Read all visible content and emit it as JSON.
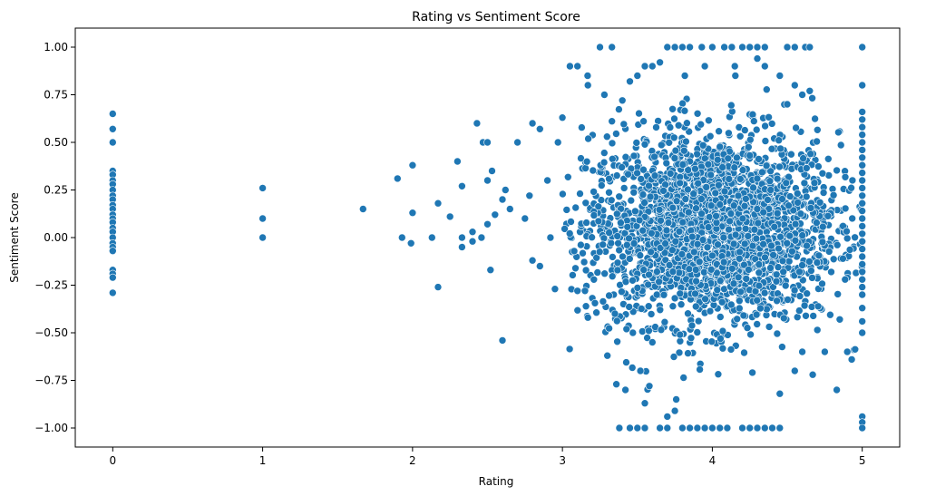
{
  "chart_data": {
    "type": "scatter",
    "title": "Rating vs Sentiment Score",
    "xlabel": "Rating",
    "ylabel": "Sentiment Score",
    "xlim": [
      -0.25,
      5.25
    ],
    "ylim": [
      -1.1,
      1.1
    ],
    "xticks": [
      0,
      1,
      2,
      3,
      4,
      5
    ],
    "xtick_labels": [
      "0",
      "1",
      "2",
      "3",
      "4",
      "5"
    ],
    "yticks": [
      -1.0,
      -0.75,
      -0.5,
      -0.25,
      0.0,
      0.25,
      0.5,
      0.75,
      1.0
    ],
    "ytick_labels": [
      "−1.00",
      "−0.75",
      "−0.50",
      "−0.25",
      "0.00",
      "0.25",
      "0.50",
      "0.75",
      "1.00"
    ],
    "grid": false,
    "marker_color": "#1f77b4",
    "marker_edge_color": "#ffffff",
    "series": [
      {
        "points": [
          [
            0,
            0.65
          ],
          [
            0,
            0.57
          ],
          [
            0,
            0.5
          ],
          [
            0,
            0.35
          ],
          [
            0,
            0.33
          ],
          [
            0,
            0.3
          ],
          [
            0,
            0.28
          ],
          [
            0,
            0.25
          ],
          [
            0,
            0.22
          ],
          [
            0,
            0.2
          ],
          [
            0,
            0.17
          ],
          [
            0,
            0.15
          ],
          [
            0,
            0.12
          ],
          [
            0,
            0.1
          ],
          [
            0,
            0.08
          ],
          [
            0,
            0.05
          ],
          [
            0,
            0.03
          ],
          [
            0,
            0.0
          ],
          [
            0,
            -0.03
          ],
          [
            0,
            -0.05
          ],
          [
            0,
            -0.07
          ],
          [
            0,
            -0.17
          ],
          [
            0,
            -0.19
          ],
          [
            0,
            -0.21
          ],
          [
            0,
            -0.29
          ],
          [
            1,
            0.26
          ],
          [
            1,
            0.1
          ],
          [
            1,
            0.0
          ],
          [
            1.67,
            0.15
          ],
          [
            1.9,
            0.31
          ],
          [
            1.93,
            0.0
          ],
          [
            2.0,
            0.38
          ],
          [
            2.0,
            0.13
          ],
          [
            1.99,
            -0.03
          ],
          [
            2.13,
            0.0
          ],
          [
            2.17,
            0.18
          ],
          [
            2.17,
            -0.26
          ],
          [
            2.25,
            0.11
          ],
          [
            2.3,
            0.4
          ],
          [
            2.33,
            0.27
          ],
          [
            2.33,
            0.0
          ],
          [
            2.33,
            -0.05
          ],
          [
            2.4,
            0.03
          ],
          [
            2.4,
            -0.02
          ],
          [
            2.43,
            0.6
          ],
          [
            2.46,
            0.0
          ],
          [
            2.47,
            0.5
          ],
          [
            2.5,
            0.5
          ],
          [
            2.5,
            0.3
          ],
          [
            2.5,
            0.07
          ],
          [
            2.52,
            -0.17
          ],
          [
            2.53,
            0.35
          ],
          [
            2.55,
            0.12
          ],
          [
            2.6,
            0.2
          ],
          [
            2.6,
            -0.54
          ],
          [
            2.62,
            0.25
          ],
          [
            2.65,
            0.15
          ],
          [
            2.7,
            0.5
          ],
          [
            2.75,
            0.1
          ],
          [
            2.78,
            0.22
          ],
          [
            2.8,
            0.6
          ],
          [
            2.8,
            -0.12
          ],
          [
            2.85,
            0.57
          ],
          [
            2.85,
            -0.15
          ],
          [
            2.9,
            0.3
          ],
          [
            2.92,
            0.0
          ],
          [
            2.95,
            -0.27
          ],
          [
            2.97,
            0.5
          ],
          [
            3.0,
            0.63
          ],
          [
            3.05,
            0.9
          ],
          [
            3.1,
            0.9
          ],
          [
            3.1,
            -0.28
          ],
          [
            3.17,
            0.8
          ],
          [
            3.17,
            -0.42
          ],
          [
            3.25,
            1.0
          ],
          [
            3.28,
            0.75
          ],
          [
            3.33,
            1.0
          ],
          [
            3.3,
            -0.62
          ],
          [
            3.35,
            -0.4
          ],
          [
            3.36,
            -0.77
          ],
          [
            3.38,
            -1.0
          ],
          [
            3.42,
            -0.8
          ],
          [
            3.45,
            -1.0
          ],
          [
            3.47,
            -0.5
          ],
          [
            3.5,
            -1.0
          ],
          [
            3.52,
            -0.7
          ],
          [
            3.55,
            -1.0
          ],
          [
            3.55,
            -0.87
          ],
          [
            3.58,
            -0.78
          ],
          [
            3.6,
            -0.55
          ],
          [
            3.65,
            -1.0
          ],
          [
            3.7,
            -1.0
          ],
          [
            3.7,
            -0.94
          ],
          [
            3.75,
            -0.91
          ],
          [
            3.8,
            -1.0
          ],
          [
            3.85,
            -1.0
          ],
          [
            3.9,
            -1.0
          ],
          [
            3.95,
            -1.0
          ],
          [
            4.0,
            -1.0
          ],
          [
            4.05,
            -1.0
          ],
          [
            4.1,
            -1.0
          ],
          [
            4.2,
            -1.0
          ],
          [
            4.25,
            -1.0
          ],
          [
            4.3,
            -1.0
          ],
          [
            4.35,
            -1.0
          ],
          [
            4.4,
            -1.0
          ],
          [
            4.45,
            -1.0
          ],
          [
            4.45,
            -0.82
          ],
          [
            4.55,
            -0.7
          ],
          [
            4.6,
            -0.6
          ],
          [
            4.67,
            -0.72
          ],
          [
            4.75,
            -0.6
          ],
          [
            4.83,
            -0.8
          ],
          [
            4.85,
            -0.43
          ],
          [
            4.9,
            -0.6
          ],
          [
            4.93,
            -0.64
          ],
          [
            3.7,
            1.0
          ],
          [
            3.75,
            1.0
          ],
          [
            3.8,
            1.0
          ],
          [
            3.85,
            1.0
          ],
          [
            3.93,
            1.0
          ],
          [
            4.0,
            1.0
          ],
          [
            4.08,
            1.0
          ],
          [
            4.13,
            1.0
          ],
          [
            4.2,
            1.0
          ],
          [
            4.25,
            1.0
          ],
          [
            4.3,
            1.0
          ],
          [
            4.35,
            1.0
          ],
          [
            4.5,
            1.0
          ],
          [
            4.55,
            1.0
          ],
          [
            4.62,
            1.0
          ],
          [
            4.65,
            1.0
          ],
          [
            4.3,
            0.94
          ],
          [
            3.65,
            0.92
          ],
          [
            3.55,
            0.9
          ],
          [
            3.6,
            0.9
          ],
          [
            3.95,
            0.9
          ],
          [
            4.15,
            0.9
          ],
          [
            4.35,
            0.9
          ],
          [
            4.45,
            0.85
          ],
          [
            3.5,
            0.85
          ],
          [
            3.45,
            0.82
          ],
          [
            4.55,
            0.8
          ],
          [
            4.6,
            0.75
          ],
          [
            4.65,
            0.77
          ],
          [
            4.5,
            0.7
          ],
          [
            3.4,
            0.72
          ],
          [
            5,
            1.0
          ],
          [
            5,
            0.8
          ],
          [
            5,
            0.66
          ],
          [
            5,
            0.62
          ],
          [
            5,
            0.58
          ],
          [
            5,
            0.54
          ],
          [
            5,
            0.5
          ],
          [
            5,
            0.46
          ],
          [
            5,
            0.42
          ],
          [
            5,
            0.38
          ],
          [
            5,
            0.34
          ],
          [
            5,
            0.3
          ],
          [
            5,
            0.26
          ],
          [
            5,
            0.22
          ],
          [
            5,
            0.18
          ],
          [
            5,
            0.14
          ],
          [
            5,
            0.1
          ],
          [
            5,
            0.06
          ],
          [
            5,
            0.02
          ],
          [
            5,
            -0.02
          ],
          [
            5,
            -0.06
          ],
          [
            5,
            -0.1
          ],
          [
            5,
            -0.14
          ],
          [
            5,
            -0.18
          ],
          [
            5,
            -0.22
          ],
          [
            5,
            -0.26
          ],
          [
            5,
            -0.3
          ],
          [
            5,
            -0.37
          ],
          [
            5,
            -0.44
          ],
          [
            5,
            -0.5
          ],
          [
            5,
            -0.94
          ],
          [
            5,
            -0.97
          ],
          [
            5,
            -1.0
          ]
        ]
      }
    ],
    "dense_clusters": [
      {
        "x_range": [
          3.0,
          5.0
        ],
        "x_center": 4.0,
        "x_spread": 0.42,
        "y_center": 0.05,
        "y_spread": 0.25,
        "count": 2600
      }
    ]
  }
}
